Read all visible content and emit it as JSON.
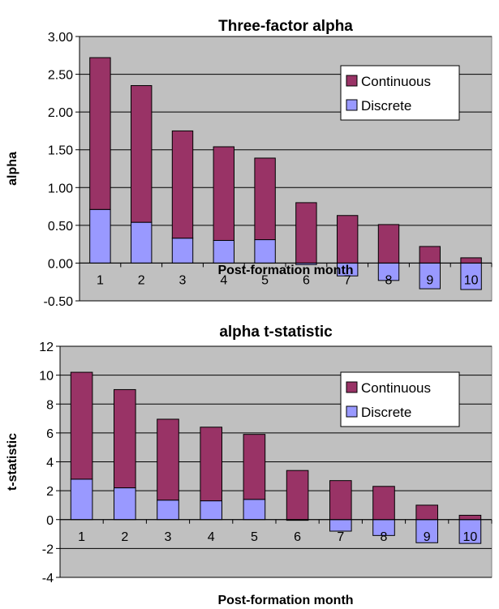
{
  "chart_data": [
    {
      "type": "bar",
      "stacked": true,
      "title": "Three-factor alpha",
      "xlabel": "Post-formation month",
      "ylabel": "alpha",
      "categories": [
        "1",
        "2",
        "3",
        "4",
        "5",
        "6",
        "7",
        "8",
        "9",
        "10"
      ],
      "ylim": [
        -0.5,
        3.0
      ],
      "yticks": [
        "3.00",
        "2.50",
        "2.00",
        "1.50",
        "1.00",
        "0.50",
        "0.00",
        "-0.50"
      ],
      "grid": true,
      "legend": "top-right",
      "series": [
        {
          "name": "Continuous",
          "color": "#993366",
          "values": [
            2.01,
            1.81,
            1.42,
            1.24,
            1.08,
            0.8,
            0.63,
            0.51,
            0.22,
            0.07
          ]
        },
        {
          "name": "Discrete",
          "color": "#9999ff",
          "values": [
            0.71,
            0.54,
            0.33,
            0.3,
            0.31,
            -0.02,
            -0.17,
            -0.23,
            -0.34,
            -0.35
          ]
        }
      ]
    },
    {
      "type": "bar",
      "stacked": true,
      "title": "alpha t-statistic",
      "xlabel": "Post-formation month",
      "ylabel": "t-statistic",
      "categories": [
        "1",
        "2",
        "3",
        "4",
        "5",
        "6",
        "7",
        "8",
        "9",
        "10"
      ],
      "ylim": [
        -4,
        12
      ],
      "yticks": [
        "12",
        "10",
        "8",
        "6",
        "4",
        "2",
        "0",
        "-2",
        "-4"
      ],
      "grid": true,
      "legend": "top-right",
      "series": [
        {
          "name": "Continuous",
          "color": "#993366",
          "values": [
            7.4,
            6.8,
            5.6,
            5.1,
            4.5,
            3.4,
            2.7,
            2.3,
            1.0,
            0.3
          ]
        },
        {
          "name": "Discrete",
          "color": "#9999ff",
          "values": [
            2.8,
            2.2,
            1.35,
            1.3,
            1.4,
            -0.05,
            -0.8,
            -1.1,
            -1.6,
            -1.65
          ]
        }
      ]
    }
  ]
}
